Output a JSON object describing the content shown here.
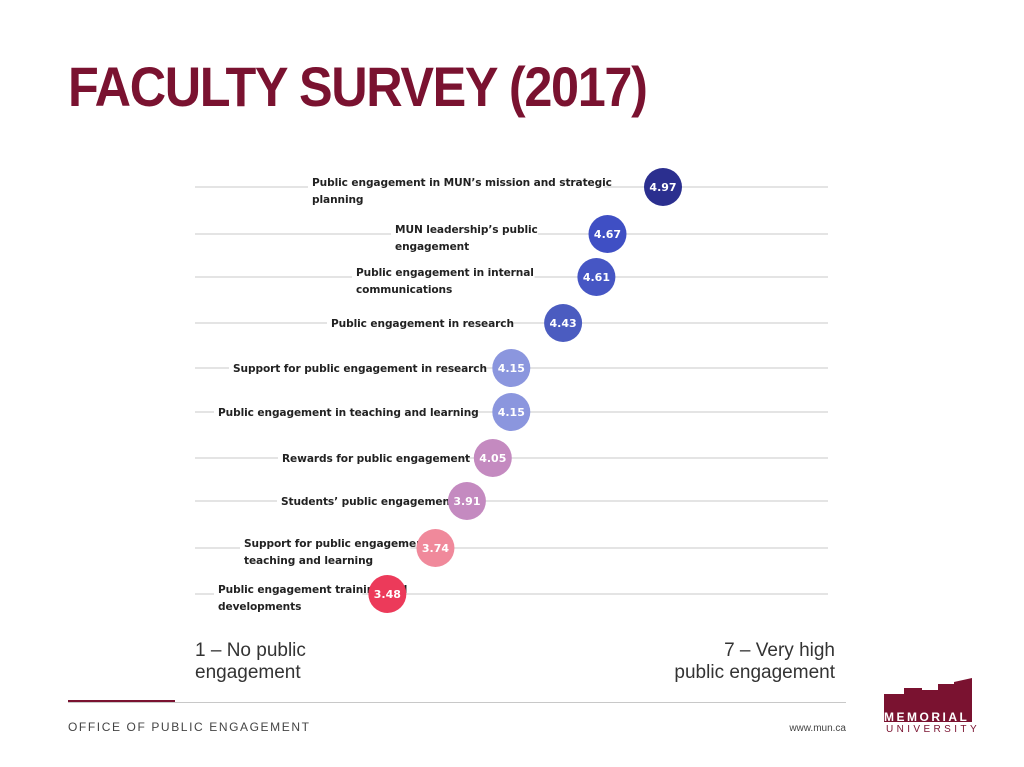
{
  "slide": {
    "title": "FACULTY SURVEY (2017)",
    "footer_office": "OFFICE OF PUBLIC ENGAGEMENT",
    "footer_url": "www.mun.ca",
    "logo": {
      "line1": "MEMORIAL",
      "line2": "UNIVERSITY",
      "color": "#7a1230"
    }
  },
  "chart_data": {
    "type": "scatter",
    "scale_min_label": [
      "1 – No public",
      "engagement"
    ],
    "scale_max_label": [
      "7 – Very high",
      "public engagement"
    ],
    "xlim": [
      1,
      7
    ],
    "items": [
      {
        "label": [
          "Public engagement in MUN’s mission and strategic",
          "planning"
        ],
        "value": 4.97,
        "display": "4.97",
        "color": "#2b2f8f"
      },
      {
        "label": [
          "MUN leadership’s public",
          "engagement"
        ],
        "value": 4.67,
        "display": "4.67",
        "color": "#3f4fc4"
      },
      {
        "label": [
          "Public engagement in internal",
          "communications"
        ],
        "value": 4.61,
        "display": "4.61",
        "color": "#4656c4"
      },
      {
        "label": [
          "Public engagement in research"
        ],
        "value": 4.43,
        "display": "4.43",
        "color": "#4b5cc0"
      },
      {
        "label": [
          "Support for public engagement in research"
        ],
        "value": 4.15,
        "display": "4.15",
        "color": "#8b96de"
      },
      {
        "label": [
          "Public engagement in teaching and learning"
        ],
        "value": 4.15,
        "display": "4.15",
        "color": "#8b96de"
      },
      {
        "label": [
          "Rewards for public engagement"
        ],
        "value": 4.05,
        "display": "4.05",
        "color": "#c48ac0"
      },
      {
        "label": [
          "Students’ public engagement"
        ],
        "value": 3.91,
        "display": "3.91",
        "color": "#c48ac0"
      },
      {
        "label": [
          "Support for public engagement in",
          "teaching and learning"
        ],
        "value": 3.74,
        "display": "3.74",
        "color": "#f0899b"
      },
      {
        "label": [
          "Public engagement training and",
          "developments"
        ],
        "value": 3.48,
        "display": "3.48",
        "color": "#ec3a5a"
      }
    ]
  }
}
